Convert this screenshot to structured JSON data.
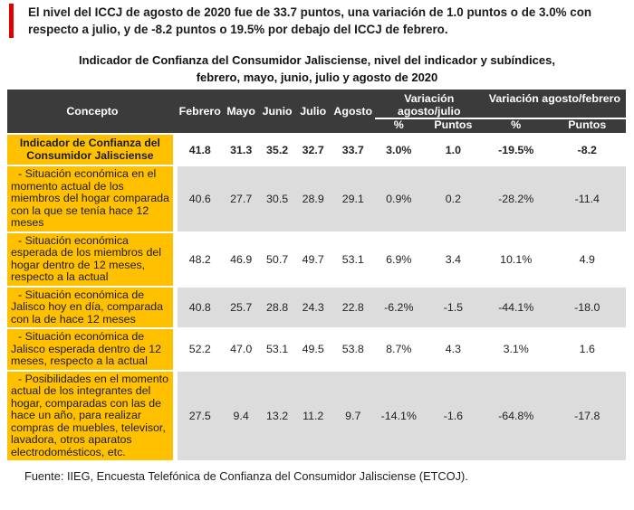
{
  "colors": {
    "accent_red": "#e00000",
    "header_dark": "#3b3b3b",
    "header_text": "#ffffff",
    "concept_yellow": "#ffc000",
    "row_shaded_gray": "#dcdcdc"
  },
  "intro": {
    "text": "El nivel del ICCJ de agosto de 2020 fue de 33.7 puntos, una variación de 1.0 puntos o de 3.0% con respecto a julio, y de -8.2 puntos o 19.5% por debajo del ICCJ de febrero."
  },
  "table_title": {
    "line1": "Indicador de Confianza del Consumidor Jalisciense, nivel del indicador y subíndices,",
    "line2": "febrero, mayo, junio, julio y agosto de 2020"
  },
  "table": {
    "header": {
      "concepto": "Concepto",
      "months": [
        "Febrero",
        "Mayo",
        "Junio",
        "Julio",
        "Agosto"
      ],
      "variacion_agosto_julio": "Variación agosto/julio",
      "variacion_agosto_febrero": "Variación agosto/febrero",
      "sub": [
        "%",
        "Puntos",
        "%",
        "Puntos"
      ]
    },
    "rows": [
      {
        "concepto": "Indicador de Confianza del Consumidor Jalisciense",
        "values": [
          "41.8",
          "31.3",
          "35.2",
          "32.7",
          "33.7",
          "3.0%",
          "1.0",
          "-19.5%",
          "-8.2"
        ],
        "bold": true,
        "shaded": false
      },
      {
        "concepto": "- Situación económica en el momento actual de los miembros del hogar comparada con la que se tenía hace 12 meses",
        "values": [
          "40.6",
          "27.7",
          "30.5",
          "28.9",
          "29.1",
          "0.9%",
          "0.2",
          "-28.2%",
          "-11.4"
        ],
        "bold": false,
        "shaded": true
      },
      {
        "concepto": "- Situación económica esperada de los miembros del hogar dentro de 12 meses, respecto a la actual",
        "values": [
          "48.2",
          "46.9",
          "50.7",
          "49.7",
          "53.1",
          "6.9%",
          "3.4",
          "10.1%",
          "4.9"
        ],
        "bold": false,
        "shaded": false
      },
      {
        "concepto": "- Situación económica de Jalisco hoy en día, comparada con la de hace 12 meses",
        "values": [
          "40.8",
          "25.7",
          "28.8",
          "24.3",
          "22.8",
          "-6.2%",
          "-1.5",
          "-44.1%",
          "-18.0"
        ],
        "bold": false,
        "shaded": true
      },
      {
        "concepto": "- Situación económica de Jalisco esperada dentro de 12 meses, respecto a la actual",
        "values": [
          "52.2",
          "47.0",
          "53.1",
          "49.5",
          "53.8",
          "8.7%",
          "4.3",
          "3.1%",
          "1.6"
        ],
        "bold": false,
        "shaded": false
      },
      {
        "concepto": "- Posibilidades en el momento actual de los integrantes del hogar, comparadas con las de hace un año, para realizar compras de muebles, televisor, lavadora, otros aparatos electrodomésticos, etc.",
        "values": [
          "27.5",
          "9.4",
          "13.2",
          "11.2",
          "9.7",
          "-14.1%",
          "-1.6",
          "-64.8%",
          "-17.8"
        ],
        "bold": false,
        "shaded": true
      }
    ]
  },
  "source": "Fuente: IIEG, Encuesta Telefónica de Confianza del Consumidor Jalisciense (ETCOJ)."
}
